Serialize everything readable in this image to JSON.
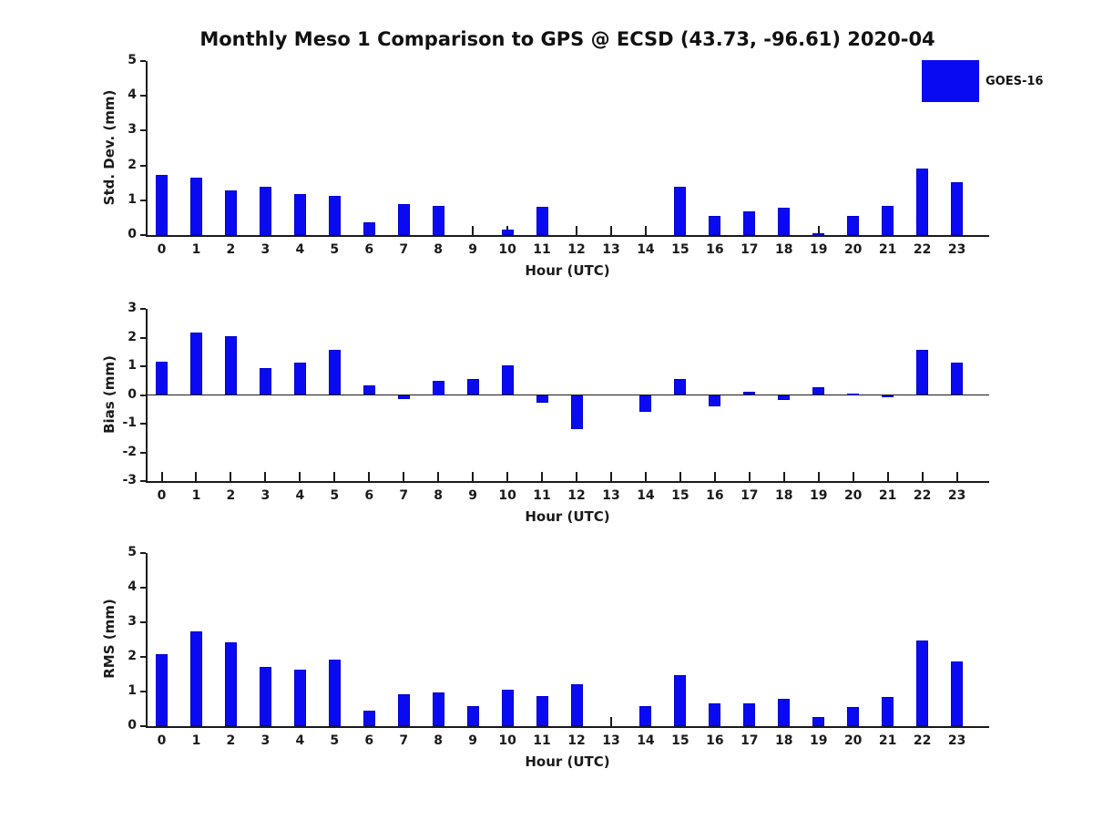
{
  "title": "Monthly Meso 1 Comparison to GPS @ ECSD (43.73, -96.61) 2020-04",
  "legend": {
    "label": "GOES-16"
  },
  "colors": {
    "bar_fill": "#0a0af2",
    "bar_edge": "#0000cf",
    "axis": "#1a1a1a"
  },
  "xlabel": "Hour (UTC)",
  "hour_labels": [
    "0",
    "1",
    "2",
    "3",
    "4",
    "5",
    "6",
    "7",
    "8",
    "9",
    "10",
    "11",
    "12",
    "13",
    "14",
    "15",
    "16",
    "17",
    "18",
    "19",
    "20",
    "21",
    "22",
    "23"
  ],
  "chart_data": [
    {
      "type": "bar",
      "name": "std-dev-panel",
      "ylabel": "Std. Dev. (mm)",
      "xlabel": "Hour (UTC)",
      "ylim": [
        0,
        5
      ],
      "yticks": [
        "0",
        "1",
        "2",
        "3",
        "4",
        "5"
      ],
      "ytick_values": [
        0,
        1,
        2,
        3,
        4,
        5
      ],
      "categories": [
        "0",
        "1",
        "2",
        "3",
        "4",
        "5",
        "6",
        "7",
        "8",
        "9",
        "10",
        "11",
        "12",
        "13",
        "14",
        "15",
        "16",
        "17",
        "18",
        "19",
        "20",
        "21",
        "22",
        "23"
      ],
      "series": [
        {
          "name": "GOES-16",
          "values": [
            1.72,
            1.65,
            1.28,
            1.4,
            1.17,
            1.12,
            0.36,
            0.9,
            0.84,
            0.0,
            0.17,
            0.82,
            0.0,
            0.0,
            0.0,
            1.4,
            0.55,
            0.67,
            0.79,
            0.05,
            0.55,
            0.84,
            1.92,
            1.52
          ]
        }
      ],
      "legend_position": "upper right",
      "grid": false
    },
    {
      "type": "bar",
      "name": "bias-panel",
      "ylabel": "Bias (mm)",
      "xlabel": "Hour (UTC)",
      "ylim": [
        -3,
        3
      ],
      "yticks": [
        "-3",
        "-2",
        "-1",
        "0",
        "1",
        "2",
        "3"
      ],
      "ytick_values": [
        -3,
        -2,
        -1,
        0,
        1,
        2,
        3
      ],
      "categories": [
        "0",
        "1",
        "2",
        "3",
        "4",
        "5",
        "6",
        "7",
        "8",
        "9",
        "10",
        "11",
        "12",
        "13",
        "14",
        "15",
        "16",
        "17",
        "18",
        "19",
        "20",
        "21",
        "22",
        "23"
      ],
      "series": [
        {
          "name": "GOES-16",
          "values": [
            1.17,
            2.17,
            2.04,
            0.95,
            1.12,
            1.57,
            0.32,
            -0.13,
            0.5,
            0.57,
            1.03,
            -0.26,
            -1.18,
            0.0,
            -0.58,
            0.55,
            -0.4,
            0.12,
            -0.18,
            0.27,
            0.06,
            -0.02,
            1.57,
            1.12
          ]
        }
      ],
      "grid": false
    },
    {
      "type": "bar",
      "name": "rms-panel",
      "ylabel": "RMS (mm)",
      "xlabel": "Hour (UTC)",
      "ylim": [
        0,
        5
      ],
      "yticks": [
        "0",
        "1",
        "2",
        "3",
        "4",
        "5"
      ],
      "ytick_values": [
        0,
        1,
        2,
        3,
        4,
        5
      ],
      "categories": [
        "0",
        "1",
        "2",
        "3",
        "4",
        "5",
        "6",
        "7",
        "8",
        "9",
        "10",
        "11",
        "12",
        "13",
        "14",
        "15",
        "16",
        "17",
        "18",
        "19",
        "20",
        "21",
        "22",
        "23"
      ],
      "series": [
        {
          "name": "GOES-16",
          "values": [
            2.09,
            2.73,
            2.42,
            1.7,
            1.62,
            1.93,
            0.46,
            0.91,
            0.98,
            0.58,
            1.04,
            0.86,
            1.2,
            0.0,
            0.59,
            1.48,
            0.67,
            0.67,
            0.79,
            0.26,
            0.56,
            0.85,
            2.47,
            1.86
          ]
        }
      ],
      "grid": false
    }
  ]
}
